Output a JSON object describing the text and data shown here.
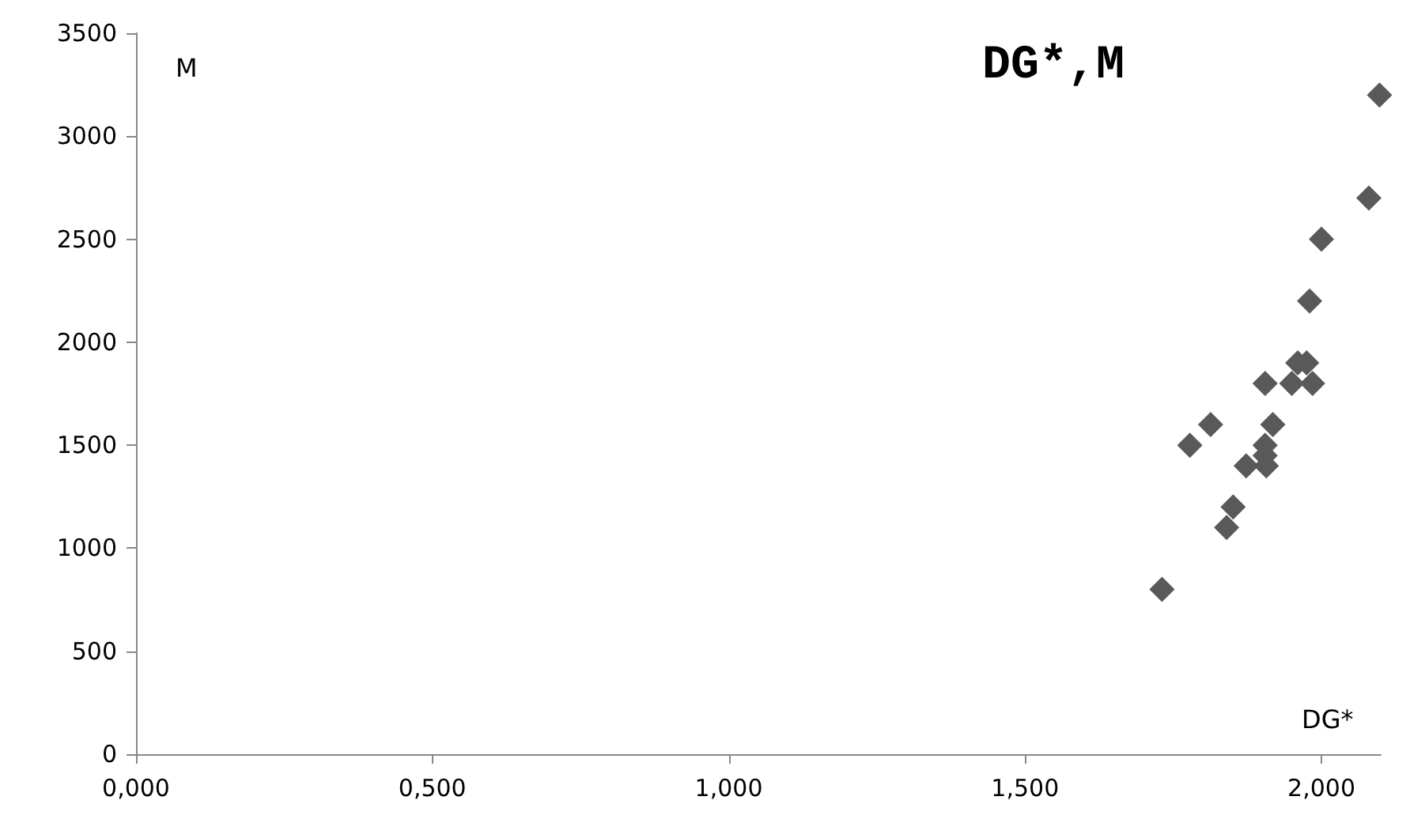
{
  "chart_data": {
    "type": "scatter",
    "title": "DG*,M",
    "xlabel": "DG*",
    "ylabel": "M",
    "x": [
      2.098,
      2.08,
      2.0,
      1.98,
      1.96,
      1.975,
      1.95,
      1.985,
      1.905,
      1.813,
      1.778,
      1.918,
      1.905,
      1.905,
      1.873,
      1.907,
      1.851,
      1.84,
      1.731
    ],
    "values": [
      3200,
      2700,
      2500,
      2200,
      1900,
      1900,
      1800,
      1800,
      1800,
      1600,
      1500,
      1600,
      1500,
      1450,
      1400,
      1400,
      1200,
      1100,
      800
    ],
    "color": "#595959",
    "marker": "diamond",
    "xlim": [
      0,
      2.1
    ],
    "xticks": [
      {
        "value": 0,
        "label": "0,000"
      },
      {
        "value": 0.5,
        "label": "0,500"
      },
      {
        "value": 1,
        "label": "1,000"
      },
      {
        "value": 1.5,
        "label": "1,500"
      },
      {
        "value": 2,
        "label": "2,000"
      }
    ],
    "ylim": [
      0,
      3500
    ],
    "yticks": [
      0,
      500,
      1000,
      1500,
      2000,
      2500,
      3000,
      3500
    ],
    "grid": false
  }
}
